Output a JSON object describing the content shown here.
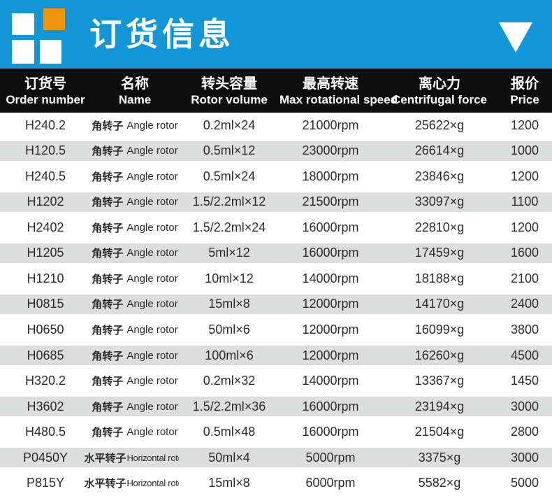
{
  "colors": {
    "banner_blue": "#1196d8",
    "logo_orange": "#ef950b",
    "header_black": "#0e0e0e",
    "row_alt_gray": "#dcdddd",
    "row_text": "#2d2d2d"
  },
  "banner": {
    "title": "订货信息",
    "collapse_icon": "down-triangle",
    "logo_squares": [
      "white",
      "orange",
      "white",
      "white"
    ]
  },
  "table": {
    "columns": [
      {
        "cn": "订货号",
        "en": "Order number"
      },
      {
        "cn": "名称",
        "en": "Name"
      },
      {
        "cn": "转头容量",
        "en": "Rotor volume"
      },
      {
        "cn": "最高转速",
        "en": "Max rotational speed"
      },
      {
        "cn": "离心力",
        "en": "Centrifugal force"
      },
      {
        "cn": "报价",
        "en": "Price"
      }
    ],
    "rows": [
      {
        "order": "H240.2",
        "name_cn": "角转子",
        "name_en": "Angle rotor",
        "volume": "0.2ml×24",
        "speed": "21000rpm",
        "force": "25622×g",
        "price": "1200"
      },
      {
        "order": "H120.5",
        "name_cn": "角转子",
        "name_en": "Angle rotor",
        "volume": "0.5ml×12",
        "speed": "23000rpm",
        "force": "26614×g",
        "price": "1000"
      },
      {
        "order": "H240.5",
        "name_cn": "角转子",
        "name_en": "Angle rotor",
        "volume": "0.5ml×24",
        "speed": "18000rpm",
        "force": "23846×g",
        "price": "1200"
      },
      {
        "order": "H1202",
        "name_cn": "角转子",
        "name_en": "Angle rotor",
        "volume": "1.5/2.2ml×12",
        "speed": "21500rpm",
        "force": "33097×g",
        "price": "1100"
      },
      {
        "order": "H2402",
        "name_cn": "角转子",
        "name_en": "Angle rotor",
        "volume": "1.5/2.2ml×24",
        "speed": "16000rpm",
        "force": "22810×g",
        "price": "1200"
      },
      {
        "order": "H1205",
        "name_cn": "角转子",
        "name_en": "Angle rotor",
        "volume": "5ml×12",
        "speed": "16000rpm",
        "force": "17459×g",
        "price": "1600"
      },
      {
        "order": "H1210",
        "name_cn": "角转子",
        "name_en": "Angle rotor",
        "volume": "10ml×12",
        "speed": "14000rpm",
        "force": "18188×g",
        "price": "2100"
      },
      {
        "order": "H0815",
        "name_cn": "角转子",
        "name_en": "Angle rotor",
        "volume": "15ml×8",
        "speed": "12000rpm",
        "force": "14170×g",
        "price": "2400"
      },
      {
        "order": "H0650",
        "name_cn": "角转子",
        "name_en": "Angle rotor",
        "volume": "50ml×6",
        "speed": "12000rpm",
        "force": "16099×g",
        "price": "3800"
      },
      {
        "order": "H0685",
        "name_cn": "角转子",
        "name_en": "Angle rotor",
        "volume": "100ml×6",
        "speed": "12000rpm",
        "force": "16260×g",
        "price": "4500"
      },
      {
        "order": "H320.2",
        "name_cn": "角转子",
        "name_en": "Angle rotor",
        "volume": "0.2ml×32",
        "speed": "14000rpm",
        "force": "13367×g",
        "price": "1450"
      },
      {
        "order": "H3602",
        "name_cn": "角转子",
        "name_en": "Angle rotor",
        "volume": "1.5/2.2ml×36",
        "speed": "16000rpm",
        "force": "23194×g",
        "price": "3000"
      },
      {
        "order": "H480.5",
        "name_cn": "角转子",
        "name_en": "Angle rotor",
        "volume": "0.5ml×48",
        "speed": "16000rpm",
        "force": "21504×g",
        "price": "2800"
      },
      {
        "order": "P0450Y",
        "name_cn": "水平转子",
        "name_en": "Horizontal rotor",
        "volume": "50ml×4",
        "speed": "5000rpm",
        "force": "3375×g",
        "price": "3000"
      },
      {
        "order": "P815Y",
        "name_cn": "水平转子",
        "name_en": "Horizontal rotor",
        "volume": "15ml×8",
        "speed": "6000rpm",
        "force": "5582×g",
        "price": "5000"
      }
    ]
  }
}
